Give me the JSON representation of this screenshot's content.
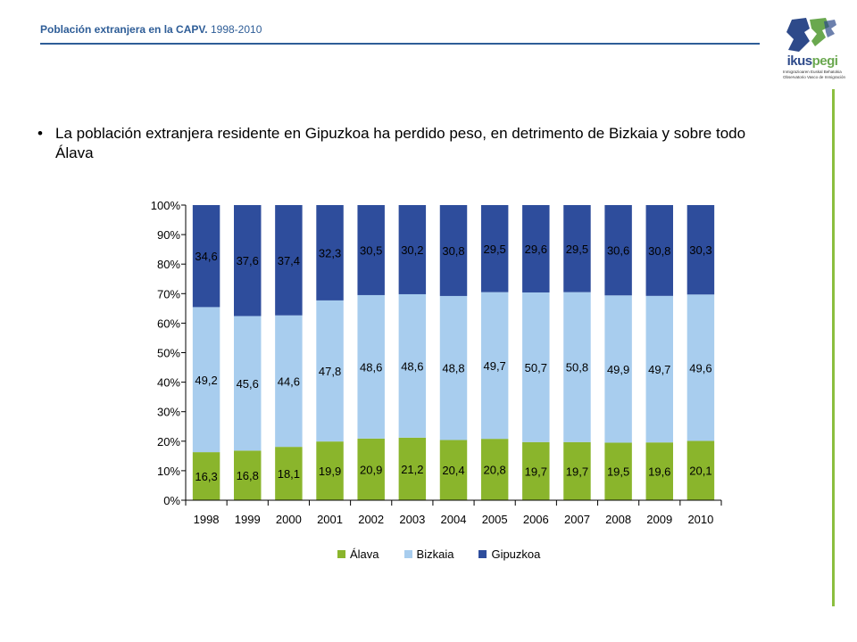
{
  "header": {
    "title_main": "Población extranjera en la CAPV.",
    "title_years": "1998-2010"
  },
  "logo": {
    "name_a": "ikus",
    "name_b": "pegi",
    "sub1": "Inmigrazioaren Euskal Behatokia",
    "sub2": "Observatorio Vasco de Inmigración"
  },
  "bullet": {
    "symbol": "•",
    "text": "La población extranjera residente en Gipuzkoa ha perdido peso, en detrimento de Bizkaia y sobre todo Álava"
  },
  "colors": {
    "alava": "#8ab52c",
    "bizkaia": "#a8cdee",
    "gipuzkoa": "#2e4d9c",
    "header": "#2e5d97",
    "accent_rule": "#8cbf3f"
  },
  "chart_data": {
    "type": "bar",
    "stacked": "percent",
    "categories": [
      "1998",
      "1999",
      "2000",
      "2001",
      "2002",
      "2003",
      "2004",
      "2005",
      "2006",
      "2007",
      "2008",
      "2009",
      "2010"
    ],
    "series": [
      {
        "name": "Álava",
        "values": [
          16.3,
          16.8,
          18.1,
          19.9,
          20.9,
          21.2,
          20.4,
          20.8,
          19.7,
          19.7,
          19.5,
          19.6,
          20.1
        ],
        "labels": [
          "16,3",
          "16,8",
          "18,1",
          "19,9",
          "20,9",
          "21,2",
          "20,4",
          "20,8",
          "19,7",
          "19,7",
          "19,5",
          "19,6",
          "20,1"
        ]
      },
      {
        "name": "Bizkaia",
        "values": [
          49.2,
          45.6,
          44.6,
          47.8,
          48.6,
          48.6,
          48.8,
          49.7,
          50.7,
          50.8,
          49.9,
          49.7,
          49.6
        ],
        "labels": [
          "49,2",
          "45,6",
          "44,6",
          "47,8",
          "48,6",
          "48,6",
          "48,8",
          "49,7",
          "50,7",
          "50,8",
          "49,9",
          "49,7",
          "49,6"
        ]
      },
      {
        "name": "Gipuzkoa",
        "values": [
          34.6,
          37.6,
          37.4,
          32.3,
          30.5,
          30.2,
          30.8,
          29.5,
          29.6,
          29.5,
          30.6,
          30.8,
          30.3
        ],
        "labels": [
          "34,6",
          "37,6",
          "37,4",
          "32,3",
          "30,5",
          "30,2",
          "30,8",
          "29,5",
          "29,6",
          "29,5",
          "30,6",
          "30,8",
          "30,3"
        ]
      }
    ],
    "yticks": [
      "0%",
      "10%",
      "20%",
      "30%",
      "40%",
      "50%",
      "60%",
      "70%",
      "80%",
      "90%",
      "100%"
    ],
    "ylim": [
      0,
      100
    ],
    "grid": false,
    "legend": "bottom"
  }
}
